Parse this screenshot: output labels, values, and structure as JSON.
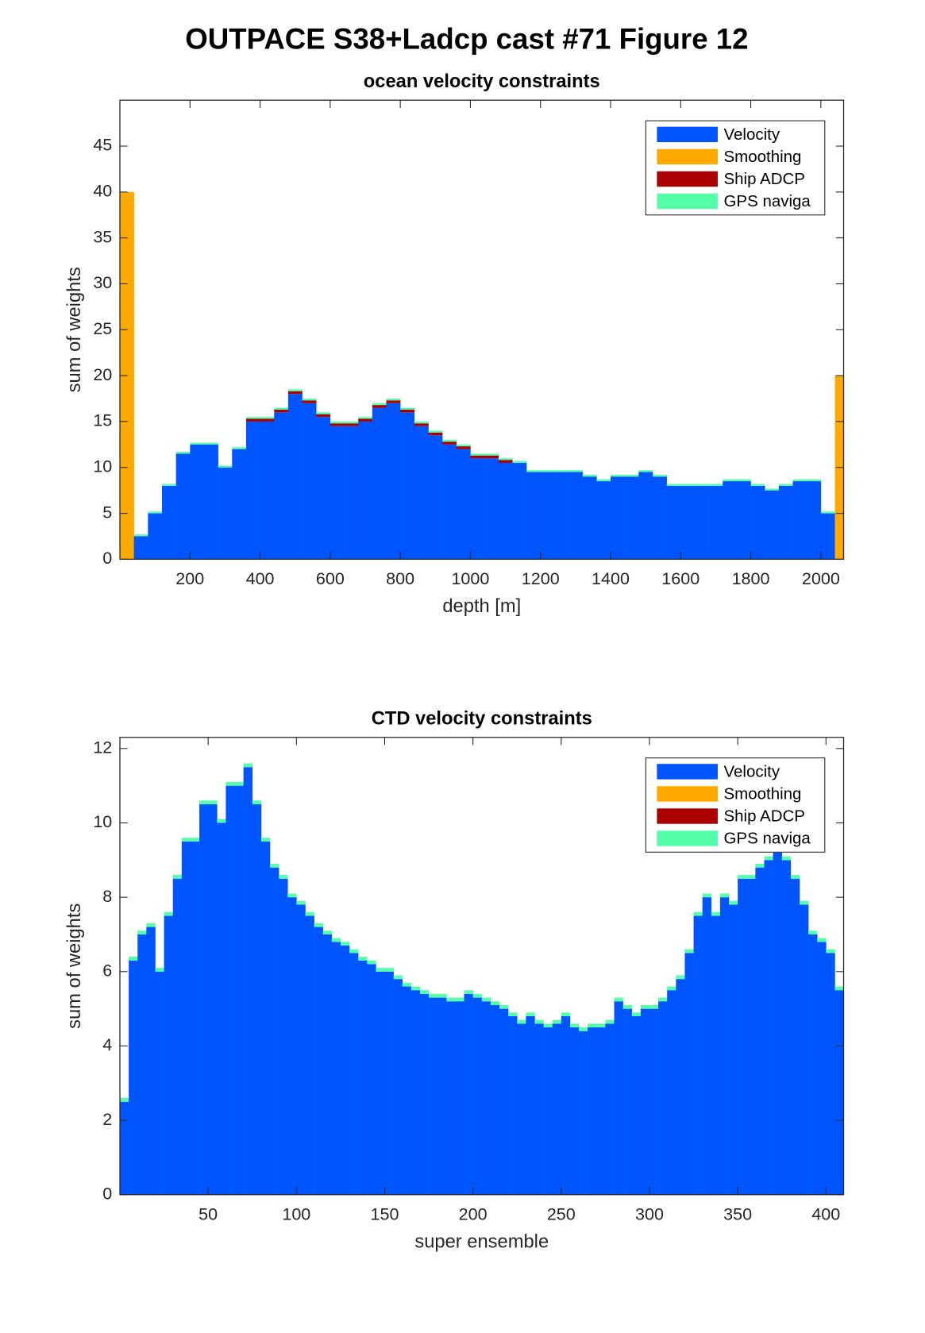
{
  "title": "OUTPACE S38+Ladcp cast #71  Figure 12",
  "chart_data": [
    {
      "type": "bar",
      "stacked": true,
      "title": "ocean velocity constraints",
      "xlabel": "depth [m]",
      "ylabel": "sum of weights",
      "x": [
        20,
        60,
        100,
        140,
        180,
        220,
        260,
        300,
        340,
        380,
        420,
        460,
        500,
        540,
        580,
        620,
        660,
        700,
        740,
        780,
        820,
        860,
        900,
        940,
        980,
        1020,
        1060,
        1100,
        1140,
        1180,
        1220,
        1260,
        1300,
        1340,
        1380,
        1420,
        1460,
        1500,
        1540,
        1580,
        1620,
        1660,
        1700,
        1740,
        1780,
        1820,
        1860,
        1900,
        1940,
        1980,
        2020,
        2060
      ],
      "series": [
        {
          "name": "Velocity",
          "color": "#0055ff",
          "values": [
            0,
            2.5,
            5,
            8,
            11.5,
            12.5,
            12.5,
            10,
            12,
            15,
            15,
            16,
            18,
            17,
            15.5,
            14.5,
            14.5,
            15,
            16.5,
            17,
            16,
            14.5,
            13.5,
            12.5,
            12,
            11,
            11,
            10.5,
            10.5,
            9.5,
            9.5,
            9.5,
            9.5,
            9,
            8.5,
            9,
            9,
            9.5,
            9,
            8,
            8,
            8,
            8,
            8.5,
            8.5,
            8,
            7.5,
            8,
            8.5,
            8.5,
            5,
            0
          ]
        },
        {
          "name": "Smoothing",
          "color": "#ffaa00",
          "values": [
            40,
            0,
            0,
            0,
            0,
            0,
            0,
            0,
            0,
            0,
            0,
            0,
            0,
            0,
            0,
            0,
            0,
            0,
            0,
            0,
            0,
            0,
            0,
            0,
            0,
            0,
            0,
            0,
            0,
            0,
            0,
            0,
            0,
            0,
            0,
            0,
            0,
            0,
            0,
            0,
            0,
            0,
            0,
            0,
            0,
            0,
            0,
            0,
            0,
            0,
            0,
            20
          ]
        },
        {
          "name": "Ship ADCP",
          "color": "#aa0000",
          "values": [
            0,
            0,
            0,
            0,
            0,
            0,
            0,
            0,
            0,
            0.3,
            0.3,
            0.3,
            0.3,
            0.3,
            0.3,
            0.3,
            0.3,
            0.3,
            0.3,
            0.3,
            0.3,
            0.3,
            0.3,
            0.3,
            0.3,
            0.3,
            0.3,
            0.3,
            0,
            0,
            0,
            0,
            0,
            0,
            0,
            0,
            0,
            0,
            0,
            0,
            0,
            0,
            0,
            0,
            0,
            0,
            0,
            0,
            0,
            0,
            0,
            0
          ]
        },
        {
          "name": "GPS naviga",
          "color": "#55ffaa",
          "values": [
            0,
            0.2,
            0.2,
            0.2,
            0.2,
            0.2,
            0.2,
            0.2,
            0.2,
            0.2,
            0.2,
            0.2,
            0.2,
            0.2,
            0.2,
            0.2,
            0.2,
            0.2,
            0.2,
            0.2,
            0.2,
            0.2,
            0.2,
            0.2,
            0.2,
            0.2,
            0.2,
            0.2,
            0.2,
            0.2,
            0.2,
            0.2,
            0.2,
            0.2,
            0.2,
            0.2,
            0.2,
            0.2,
            0.2,
            0.2,
            0.2,
            0.2,
            0.2,
            0.2,
            0.2,
            0.2,
            0.2,
            0.2,
            0.2,
            0.2,
            0.2,
            0
          ]
        }
      ],
      "xlim": [
        0,
        2065
      ],
      "ylim": [
        0,
        50
      ],
      "xticks": [
        200,
        400,
        600,
        800,
        1000,
        1200,
        1400,
        1600,
        1800,
        2000
      ],
      "yticks": [
        0,
        5,
        10,
        15,
        20,
        25,
        30,
        35,
        40,
        45
      ],
      "legend": "northeast"
    },
    {
      "type": "bar",
      "stacked": true,
      "title": "CTD velocity constraints",
      "xlabel": "super ensemble",
      "ylabel": "sum of weights",
      "x": [
        2.5,
        7.5,
        12.5,
        17.5,
        22.5,
        27.5,
        32.5,
        37.5,
        42.5,
        47.5,
        52.5,
        57.5,
        62.5,
        67.5,
        72.5,
        77.5,
        82.5,
        87.5,
        92.5,
        97.5,
        102.5,
        107.5,
        112.5,
        117.5,
        122.5,
        127.5,
        132.5,
        137.5,
        142.5,
        147.5,
        152.5,
        157.5,
        162.5,
        167.5,
        172.5,
        177.5,
        182.5,
        187.5,
        192.5,
        197.5,
        202.5,
        207.5,
        212.5,
        217.5,
        222.5,
        227.5,
        232.5,
        237.5,
        242.5,
        247.5,
        252.5,
        257.5,
        262.5,
        267.5,
        272.5,
        277.5,
        282.5,
        287.5,
        292.5,
        297.5,
        302.5,
        307.5,
        312.5,
        317.5,
        322.5,
        327.5,
        332.5,
        337.5,
        342.5,
        347.5,
        352.5,
        357.5,
        362.5,
        367.5,
        372.5,
        377.5,
        382.5,
        387.5,
        392.5,
        397.5,
        402.5,
        407.5
      ],
      "series": [
        {
          "name": "Velocity",
          "color": "#0055ff",
          "values": [
            2.5,
            6.3,
            7,
            7.2,
            6,
            7.5,
            8.5,
            9.5,
            9.5,
            10.5,
            10.5,
            10,
            11,
            11,
            11.5,
            10.5,
            9.5,
            8.8,
            8.5,
            8,
            7.8,
            7.5,
            7.2,
            7,
            6.8,
            6.7,
            6.5,
            6.3,
            6.2,
            6,
            6,
            5.8,
            5.6,
            5.5,
            5.4,
            5.3,
            5.3,
            5.2,
            5.2,
            5.4,
            5.3,
            5.2,
            5.1,
            5,
            4.8,
            4.6,
            4.8,
            4.6,
            4.5,
            4.6,
            4.8,
            4.5,
            4.4,
            4.5,
            4.5,
            4.6,
            5.2,
            5,
            4.8,
            5,
            5,
            5.2,
            5.5,
            5.8,
            6.5,
            7.5,
            8,
            7.5,
            8,
            7.8,
            8.5,
            8.5,
            8.8,
            9,
            9.2,
            9,
            8.5,
            7.8,
            7,
            6.8,
            6.5,
            5.5
          ]
        },
        {
          "name": "Smoothing",
          "color": "#ffaa00",
          "values": [
            0,
            0,
            0,
            0,
            0,
            0,
            0,
            0,
            0,
            0,
            0,
            0,
            0,
            0,
            0,
            0,
            0,
            0,
            0,
            0,
            0,
            0,
            0,
            0,
            0,
            0,
            0,
            0,
            0,
            0,
            0,
            0,
            0,
            0,
            0,
            0,
            0,
            0,
            0,
            0,
            0,
            0,
            0,
            0,
            0,
            0,
            0,
            0,
            0,
            0,
            0,
            0,
            0,
            0,
            0,
            0,
            0,
            0,
            0,
            0,
            0,
            0,
            0,
            0,
            0,
            0,
            0,
            0,
            0,
            0,
            0,
            0,
            0,
            0,
            0,
            0,
            0,
            0,
            0,
            0,
            0,
            0
          ]
        },
        {
          "name": "Ship ADCP",
          "color": "#aa0000",
          "values": [
            0,
            0,
            0,
            0,
            0,
            0,
            0,
            0,
            0,
            0,
            0,
            0,
            0,
            0,
            0,
            0,
            0,
            0,
            0,
            0,
            0,
            0,
            0,
            0,
            0,
            0,
            0,
            0,
            0,
            0,
            0,
            0,
            0,
            0,
            0,
            0,
            0,
            0,
            0,
            0,
            0,
            0,
            0,
            0,
            0,
            0,
            0,
            0,
            0,
            0,
            0,
            0,
            0,
            0,
            0,
            0,
            0,
            0,
            0,
            0,
            0,
            0,
            0,
            0,
            0,
            0,
            0,
            0,
            0,
            0,
            0,
            0,
            0,
            0,
            0,
            0,
            0,
            0,
            0,
            0,
            0,
            0
          ]
        },
        {
          "name": "GPS naviga",
          "color": "#55ffaa",
          "values": [
            0.1,
            0.1,
            0.1,
            0.1,
            0.1,
            0.1,
            0.1,
            0.1,
            0.1,
            0.1,
            0.1,
            0.1,
            0.1,
            0.1,
            0.1,
            0.1,
            0.1,
            0.1,
            0.1,
            0.1,
            0.1,
            0.1,
            0.1,
            0.1,
            0.1,
            0.1,
            0.1,
            0.1,
            0.1,
            0.1,
            0.1,
            0.1,
            0.1,
            0.1,
            0.1,
            0.1,
            0.1,
            0.1,
            0.1,
            0.1,
            0.1,
            0.1,
            0.1,
            0.1,
            0.1,
            0.1,
            0.1,
            0.1,
            0.1,
            0.1,
            0.1,
            0.1,
            0.1,
            0.1,
            0.1,
            0.1,
            0.1,
            0.1,
            0.1,
            0.1,
            0.1,
            0.1,
            0.1,
            0.1,
            0.1,
            0.1,
            0.1,
            0.1,
            0.1,
            0.1,
            0.1,
            0.1,
            0.1,
            0.1,
            0.1,
            0.1,
            0.1,
            0.1,
            0.1,
            0.1,
            0.1,
            0.1
          ]
        }
      ],
      "xlim": [
        0,
        410
      ],
      "ylim": [
        0,
        12.3
      ],
      "xticks": [
        50,
        100,
        150,
        200,
        250,
        300,
        350,
        400
      ],
      "yticks": [
        0,
        2,
        4,
        6,
        8,
        10,
        12
      ],
      "legend": "northeast"
    }
  ]
}
